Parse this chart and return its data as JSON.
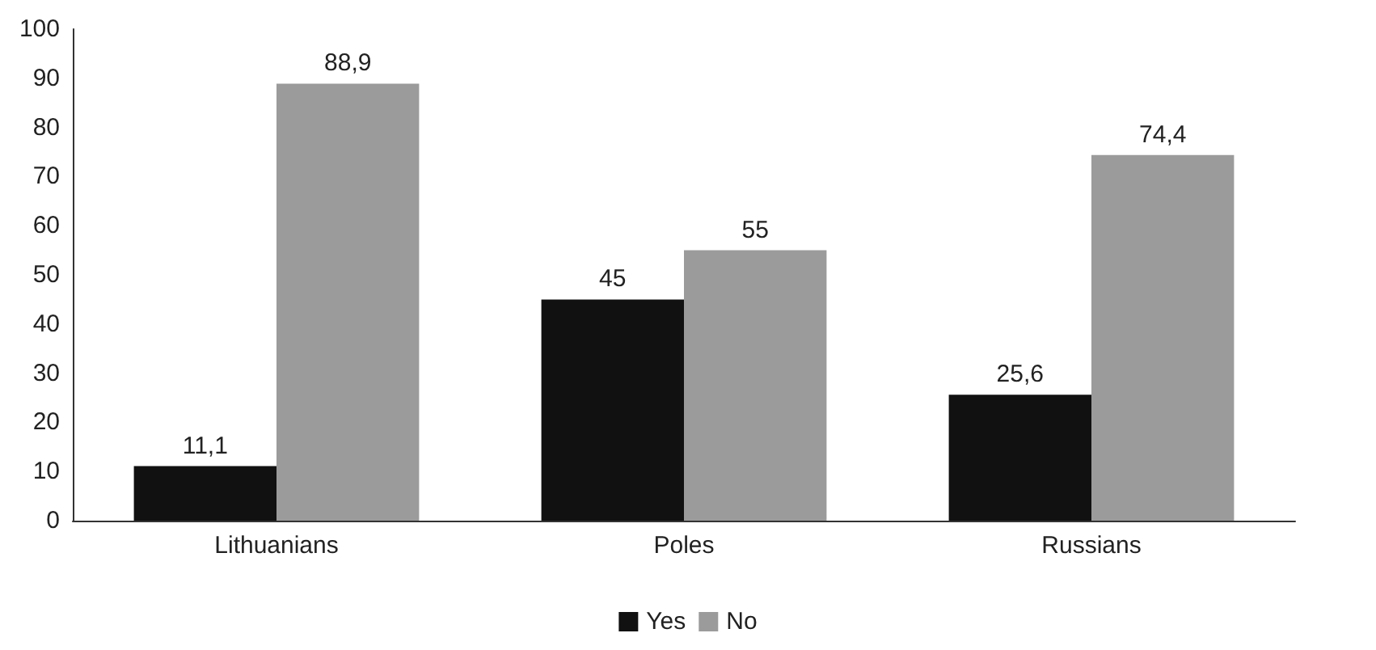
{
  "chart_data": {
    "type": "bar",
    "categories": [
      "Lithuanians",
      "Poles",
      "Russians"
    ],
    "series": [
      {
        "name": "Yes",
        "color": "#111111",
        "values": [
          11.1,
          45,
          25.6
        ],
        "value_labels": [
          "11,1",
          "45",
          "25,6"
        ]
      },
      {
        "name": "No",
        "color": "#9b9b9b",
        "values": [
          88.9,
          55,
          74.4
        ],
        "value_labels": [
          "88,9",
          "55",
          "74,4"
        ]
      }
    ],
    "ylim": [
      0,
      100
    ],
    "yticks": [
      0,
      10,
      20,
      30,
      40,
      50,
      60,
      70,
      80,
      90,
      100
    ],
    "grid": false,
    "legend": "bottom"
  }
}
